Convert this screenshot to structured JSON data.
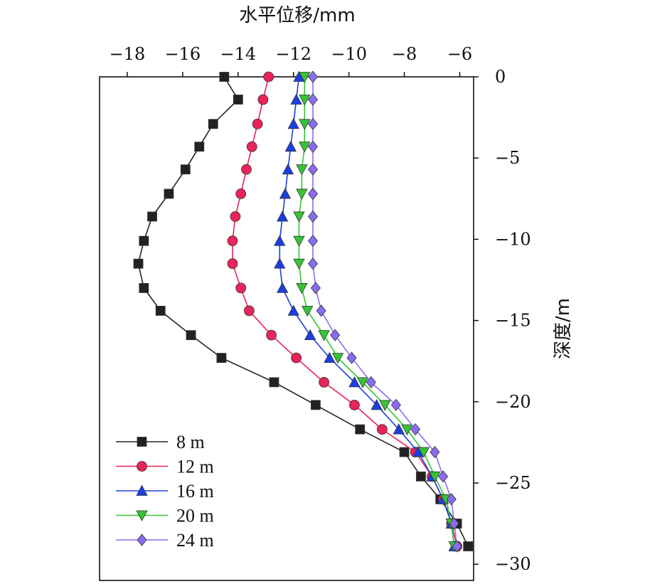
{
  "chart_data": {
    "type": "line",
    "xlabel": "水平位移/mm",
    "ylabel": "深度/m",
    "xlim": [
      -19,
      -5.5
    ],
    "ylim": [
      -31,
      0
    ],
    "xticks": [
      -18,
      -16,
      -14,
      -12,
      -10,
      -8,
      -6
    ],
    "yticks": [
      0,
      -5,
      -10,
      -15,
      -20,
      -25,
      -30
    ],
    "xtick_labels": [
      "−18",
      "−16",
      "−14",
      "−12",
      "−10",
      "−8",
      "−6"
    ],
    "ytick_labels": [
      "0",
      "−5",
      "−10",
      "−15",
      "−20",
      "−25",
      "−30"
    ],
    "legend_position": "bottom-left",
    "grid": false,
    "series": [
      {
        "name": "8 m",
        "color": "#222222",
        "marker": "square",
        "points": [
          [
            -14.5,
            0
          ],
          [
            -14.0,
            -1.4
          ],
          [
            -14.9,
            -2.9
          ],
          [
            -15.4,
            -4.3
          ],
          [
            -15.9,
            -5.7
          ],
          [
            -16.5,
            -7.2
          ],
          [
            -17.1,
            -8.6
          ],
          [
            -17.4,
            -10.1
          ],
          [
            -17.6,
            -11.5
          ],
          [
            -17.4,
            -13.0
          ],
          [
            -16.8,
            -14.4
          ],
          [
            -15.7,
            -15.9
          ],
          [
            -14.6,
            -17.3
          ],
          [
            -12.7,
            -18.8
          ],
          [
            -11.2,
            -20.2
          ],
          [
            -9.6,
            -21.7
          ],
          [
            -8.0,
            -23.1
          ],
          [
            -7.4,
            -24.6
          ],
          [
            -6.7,
            -26.0
          ],
          [
            -6.1,
            -27.5
          ],
          [
            -5.7,
            -28.9
          ]
        ]
      },
      {
        "name": "12 m",
        "color": "#e8245a",
        "marker": "circle",
        "points": [
          [
            -12.9,
            0
          ],
          [
            -13.1,
            -1.4
          ],
          [
            -13.3,
            -2.9
          ],
          [
            -13.5,
            -4.3
          ],
          [
            -13.7,
            -5.7
          ],
          [
            -13.9,
            -7.2
          ],
          [
            -14.1,
            -8.6
          ],
          [
            -14.2,
            -10.1
          ],
          [
            -14.2,
            -11.5
          ],
          [
            -13.9,
            -13.0
          ],
          [
            -13.6,
            -14.4
          ],
          [
            -12.8,
            -15.9
          ],
          [
            -11.9,
            -17.3
          ],
          [
            -10.9,
            -18.8
          ],
          [
            -9.8,
            -20.2
          ],
          [
            -8.8,
            -21.7
          ],
          [
            -7.6,
            -23.1
          ],
          [
            -7.0,
            -24.6
          ],
          [
            -6.6,
            -26.0
          ],
          [
            -6.3,
            -27.5
          ],
          [
            -6.1,
            -28.9
          ]
        ]
      },
      {
        "name": "16 m",
        "color": "#1a3fe0",
        "marker": "triangle-up",
        "points": [
          [
            -11.8,
            0
          ],
          [
            -11.9,
            -1.4
          ],
          [
            -12.0,
            -2.9
          ],
          [
            -12.1,
            -4.3
          ],
          [
            -12.2,
            -5.7
          ],
          [
            -12.3,
            -7.2
          ],
          [
            -12.4,
            -8.6
          ],
          [
            -12.5,
            -10.1
          ],
          [
            -12.5,
            -11.5
          ],
          [
            -12.4,
            -13.0
          ],
          [
            -12.0,
            -14.4
          ],
          [
            -11.4,
            -15.9
          ],
          [
            -10.7,
            -17.3
          ],
          [
            -9.8,
            -18.8
          ],
          [
            -9.0,
            -20.2
          ],
          [
            -8.2,
            -21.7
          ],
          [
            -7.5,
            -23.1
          ],
          [
            -7.0,
            -24.6
          ],
          [
            -6.6,
            -26.0
          ],
          [
            -6.3,
            -27.5
          ],
          [
            -6.2,
            -28.9
          ]
        ]
      },
      {
        "name": "20 m",
        "color": "#36c436",
        "marker": "triangle-down",
        "points": [
          [
            -11.6,
            0
          ],
          [
            -11.6,
            -1.4
          ],
          [
            -11.6,
            -2.9
          ],
          [
            -11.6,
            -4.3
          ],
          [
            -11.7,
            -5.7
          ],
          [
            -11.7,
            -7.2
          ],
          [
            -11.8,
            -8.6
          ],
          [
            -11.8,
            -10.1
          ],
          [
            -11.8,
            -11.5
          ],
          [
            -11.7,
            -13.0
          ],
          [
            -11.5,
            -14.4
          ],
          [
            -10.9,
            -15.9
          ],
          [
            -10.4,
            -17.3
          ],
          [
            -9.5,
            -18.8
          ],
          [
            -8.7,
            -20.2
          ],
          [
            -7.9,
            -21.7
          ],
          [
            -7.3,
            -23.1
          ],
          [
            -6.9,
            -24.6
          ],
          [
            -6.5,
            -26.0
          ],
          [
            -6.3,
            -27.5
          ],
          [
            -6.2,
            -28.9
          ]
        ]
      },
      {
        "name": "24 m",
        "color": "#8a6cf0",
        "marker": "diamond",
        "points": [
          [
            -11.3,
            0
          ],
          [
            -11.3,
            -1.4
          ],
          [
            -11.3,
            -2.9
          ],
          [
            -11.3,
            -4.3
          ],
          [
            -11.3,
            -5.7
          ],
          [
            -11.3,
            -7.2
          ],
          [
            -11.3,
            -8.6
          ],
          [
            -11.3,
            -10.1
          ],
          [
            -11.3,
            -11.5
          ],
          [
            -11.2,
            -13.0
          ],
          [
            -11.0,
            -14.4
          ],
          [
            -10.5,
            -15.9
          ],
          [
            -9.9,
            -17.3
          ],
          [
            -9.2,
            -18.8
          ],
          [
            -8.3,
            -20.2
          ],
          [
            -7.6,
            -21.7
          ],
          [
            -6.9,
            -23.1
          ],
          [
            -6.6,
            -24.6
          ],
          [
            -6.3,
            -26.0
          ],
          [
            -6.2,
            -27.5
          ],
          [
            -6.1,
            -28.9
          ]
        ]
      }
    ]
  }
}
